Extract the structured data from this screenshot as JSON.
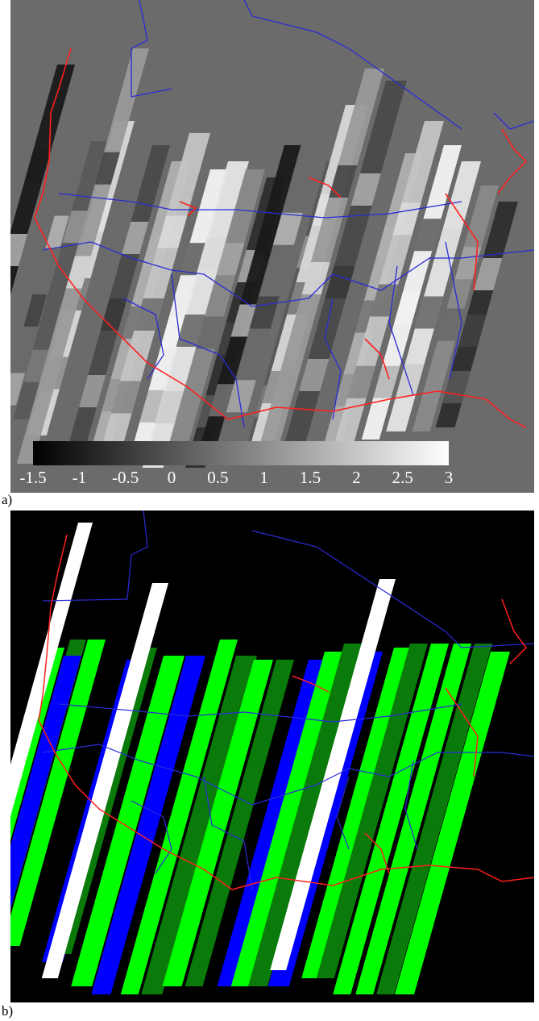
{
  "panels": [
    {
      "label": "a)",
      "type": "grayscale-anomaly-map"
    },
    {
      "label": "b)",
      "type": "swath-coverage-map"
    }
  ],
  "colorbar": {
    "ticks": [
      "-1.5",
      "-1",
      "-0.5",
      "0",
      "0.5",
      "1",
      "1.5",
      "2",
      "2.5",
      "3"
    ],
    "min": -1.5,
    "max": 3,
    "colormap": "gray"
  },
  "colors": {
    "background_a": "#6b6b6b",
    "background_b": "#000000",
    "coastline": "#ff2020",
    "borders": "#2b2bd6",
    "swath_light_green": "#00ff00",
    "swath_dark_green": "#0a7a0a",
    "swath_blue": "#0000ff",
    "swath_white": "#ffffff"
  },
  "swath_colors_b": [
    "light-green",
    "dark-green",
    "blue",
    "white",
    "light-green",
    "blue",
    "dark-green",
    "white",
    "light-green",
    "blue",
    "light-green",
    "dark-green",
    "light-green",
    "dark-green",
    "blue",
    "light-green",
    "dark-green",
    "blue",
    "white",
    "light-green",
    "dark-green",
    "light-green",
    "light-green",
    "dark-green",
    "light-green"
  ]
}
